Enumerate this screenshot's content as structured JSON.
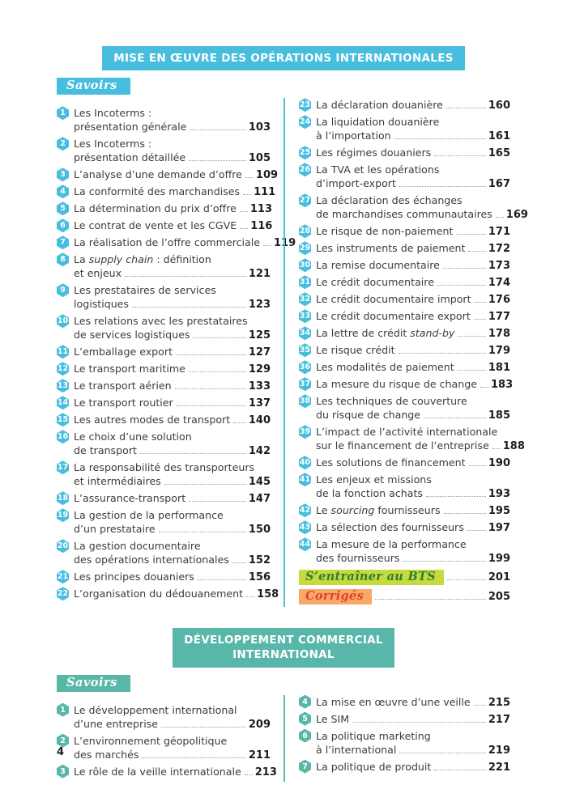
{
  "page": {
    "number": "4"
  },
  "sections": [
    {
      "id": "operations-internationales",
      "title_lines": [
        "MISE EN ŒUVRE DES OPÉRATIONS INTERNATIONALES"
      ],
      "tag": "Savoirs",
      "accent": "#47bedd",
      "columns": [
        [
          {
            "num": "1",
            "lines": [
              "Les Incoterms :",
              "présentation générale"
            ],
            "page": "103"
          },
          {
            "num": "2",
            "lines": [
              "Les Incoterms :",
              "présentation détaillée"
            ],
            "page": "105"
          },
          {
            "num": "3",
            "lines": [
              "L’analyse d’une demande d’offre"
            ],
            "page": "109"
          },
          {
            "num": "4",
            "lines": [
              "La conformité des marchandises"
            ],
            "page": "111"
          },
          {
            "num": "5",
            "lines": [
              "La détermination du prix d’offre"
            ],
            "page": "113"
          },
          {
            "num": "6",
            "lines": [
              "Le contrat de vente et les CGVE"
            ],
            "page": "116"
          },
          {
            "num": "7",
            "lines": [
              "La réalisation de l’offre commerciale"
            ],
            "page": "119"
          },
          {
            "num": "8",
            "lines": [
              "La *supply chain* : définition",
              "et enjeux"
            ],
            "page": "121"
          },
          {
            "num": "9",
            "lines": [
              "Les prestataires de services",
              "logistiques"
            ],
            "page": "123"
          },
          {
            "num": "10",
            "lines": [
              "Les relations avec les prestataires",
              "de services logistiques"
            ],
            "page": "125"
          },
          {
            "num": "11",
            "lines": [
              "L’emballage export"
            ],
            "page": "127"
          },
          {
            "num": "12",
            "lines": [
              "Le transport maritime"
            ],
            "page": "129"
          },
          {
            "num": "13",
            "lines": [
              "Le transport aérien"
            ],
            "page": "133"
          },
          {
            "num": "14",
            "lines": [
              "Le transport routier"
            ],
            "page": "137"
          },
          {
            "num": "15",
            "lines": [
              "Les autres modes de transport"
            ],
            "page": "140"
          },
          {
            "num": "16",
            "lines": [
              "Le choix d’une solution",
              "de transport"
            ],
            "page": "142"
          },
          {
            "num": "17",
            "lines": [
              "La responsabilité des transporteurs",
              "et intermédiaires"
            ],
            "page": "145"
          },
          {
            "num": "18",
            "lines": [
              "L’assurance-transport"
            ],
            "page": "147"
          },
          {
            "num": "19",
            "lines": [
              "La gestion de la performance",
              "d’un prestataire"
            ],
            "page": "150"
          },
          {
            "num": "20",
            "lines": [
              "La gestion documentaire",
              "des opérations internationales"
            ],
            "page": "152"
          },
          {
            "num": "21",
            "lines": [
              "Les principes douaniers"
            ],
            "page": "156"
          },
          {
            "num": "22",
            "lines": [
              "L’organisation du dédouanement"
            ],
            "page": "158"
          }
        ],
        [
          {
            "num": "23",
            "lines": [
              "La déclaration douanière"
            ],
            "page": "160"
          },
          {
            "num": "24",
            "lines": [
              "La liquidation douanière",
              "à l’importation"
            ],
            "page": "161"
          },
          {
            "num": "25",
            "lines": [
              "Les régimes douaniers"
            ],
            "page": "165"
          },
          {
            "num": "26",
            "lines": [
              "La TVA et les opérations",
              "d’import-export"
            ],
            "page": "167"
          },
          {
            "num": "27",
            "lines": [
              "La déclaration des échanges",
              "de marchandises communautaires"
            ],
            "page": "169"
          },
          {
            "num": "28",
            "lines": [
              "Le risque de non-paiement"
            ],
            "page": "171"
          },
          {
            "num": "29",
            "lines": [
              "Les instruments de paiement"
            ],
            "page": "172"
          },
          {
            "num": "30",
            "lines": [
              "La remise documentaire"
            ],
            "page": "173"
          },
          {
            "num": "31",
            "lines": [
              "Le crédit documentaire"
            ],
            "page": "174"
          },
          {
            "num": "32",
            "lines": [
              "Le crédit documentaire import"
            ],
            "page": "176"
          },
          {
            "num": "33",
            "lines": [
              "Le crédit documentaire export"
            ],
            "page": "177"
          },
          {
            "num": "34",
            "lines": [
              "La lettre de crédit *stand-by*"
            ],
            "page": "178"
          },
          {
            "num": "35",
            "lines": [
              "Le risque crédit"
            ],
            "page": "179"
          },
          {
            "num": "36",
            "lines": [
              "Les modalités de paiement"
            ],
            "page": "181"
          },
          {
            "num": "37",
            "lines": [
              "La mesure du risque de change"
            ],
            "page": "183"
          },
          {
            "num": "38",
            "lines": [
              "Les techniques de couverture",
              "du risque de change"
            ],
            "page": "185"
          },
          {
            "num": "39",
            "lines": [
              "L’impact de l’activité internationale",
              "sur le financement de l’entreprise"
            ],
            "page": "188"
          },
          {
            "num": "40",
            "lines": [
              "Les solutions de financement"
            ],
            "page": "190"
          },
          {
            "num": "41",
            "lines": [
              "Les enjeux et missions",
              "de la fonction achats"
            ],
            "page": "193"
          },
          {
            "num": "42",
            "lines": [
              "Le *sourcing* fournisseurs"
            ],
            "page": "195"
          },
          {
            "num": "43",
            "lines": [
              "La sélection des fournisseurs"
            ],
            "page": "197"
          },
          {
            "num": "44",
            "lines": [
              "La mesure de la performance",
              "des fournisseurs"
            ],
            "page": "199"
          }
        ]
      ],
      "extras": [
        {
          "name": "bts-training",
          "label": "S’entraîner au BTS",
          "page": "201",
          "bg": "#c6da3e",
          "color": "#2e7d36"
        },
        {
          "name": "corriges",
          "label": "Corrigés",
          "page": "205",
          "bg": "#f8a967",
          "color": "#e43f2b"
        }
      ]
    },
    {
      "id": "developpement-commercial",
      "title_lines": [
        "DÉVELOPPEMENT COMMERCIAL",
        "INTERNATIONAL"
      ],
      "tag": "Savoirs",
      "accent": "#58b7a8",
      "columns": [
        [
          {
            "num": "1",
            "lines": [
              "Le développement international",
              "d’une entreprise"
            ],
            "page": "209"
          },
          {
            "num": "2",
            "lines": [
              "L’environnement géopolitique",
              "des marchés"
            ],
            "page": "211"
          },
          {
            "num": "3",
            "lines": [
              "Le rôle de la veille internationale"
            ],
            "page": "213"
          }
        ],
        [
          {
            "num": "4",
            "lines": [
              "La mise en œuvre d’une veille"
            ],
            "page": "215"
          },
          {
            "num": "5",
            "lines": [
              "Le SIM"
            ],
            "page": "217"
          },
          {
            "num": "6",
            "lines": [
              "La politique marketing",
              "à l’international"
            ],
            "page": "219"
          },
          {
            "num": "7",
            "lines": [
              "La politique de produit"
            ],
            "page": "221"
          }
        ]
      ],
      "extras": []
    }
  ]
}
